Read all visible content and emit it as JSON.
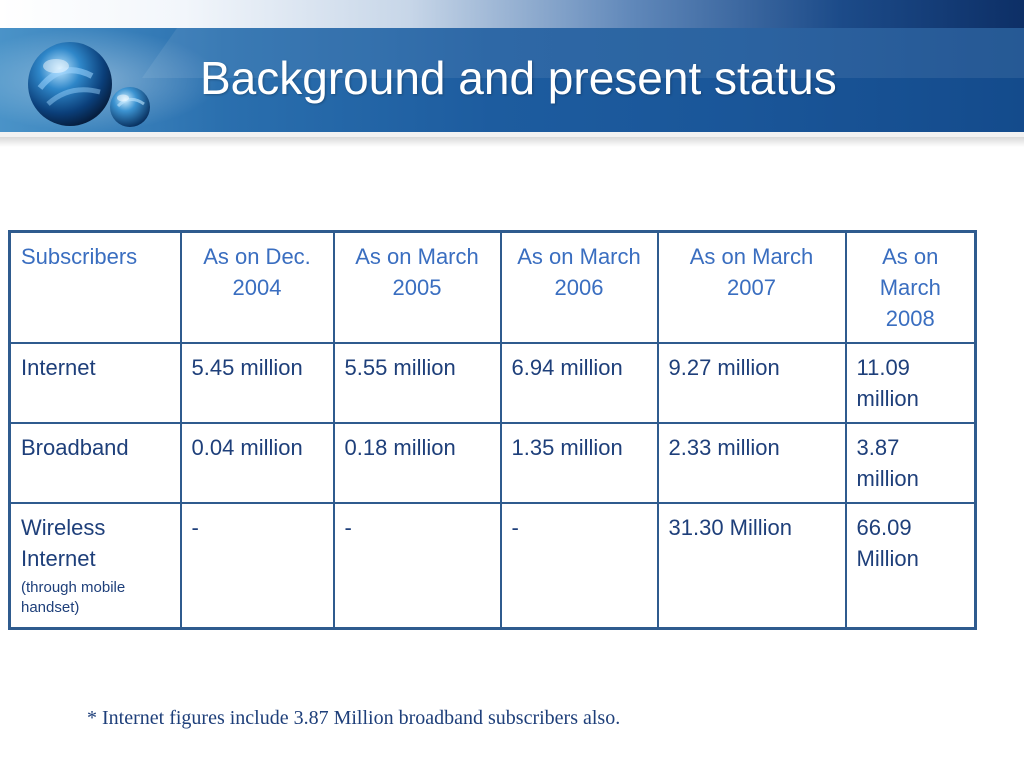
{
  "slide": {
    "title": "Background and present status"
  },
  "table": {
    "headers": [
      "Subscribers",
      "As on Dec. 2004",
      "As on March 2005",
      "As on March 2006",
      "As on March 2007",
      "As on March 2008"
    ],
    "rows": [
      {
        "label": "Internet",
        "values": [
          "5.45 million",
          "5.55 million",
          "6.94 million",
          "9.27 million",
          "11.09 million"
        ]
      },
      {
        "label": "Broadband",
        "values": [
          "0.04 million",
          "0.18 million",
          "1.35 million",
          "2.33 million",
          "3.87 million"
        ]
      },
      {
        "label": "Wireless Internet",
        "note": "(through mobile handset)",
        "values": [
          "-",
          "-",
          "-",
          "31.30 Million",
          "66.09 Million"
        ]
      }
    ]
  },
  "footnote": "* Internet figures include 3.87 Million broadband subscribers also.",
  "colors": {
    "header_band": "#1d5c9f",
    "table_border": "#2f5b8e",
    "header_text": "#3a6ec0",
    "body_text": "#1e3f7a"
  },
  "icons": {
    "logo": "globe-logo-icon"
  }
}
